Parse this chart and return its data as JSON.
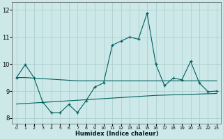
{
  "xlabel": "Humidex (Indice chaleur)",
  "x": [
    0,
    1,
    2,
    3,
    4,
    5,
    6,
    7,
    8,
    9,
    10,
    11,
    12,
    13,
    14,
    15,
    16,
    17,
    18,
    19,
    20,
    21,
    22,
    23
  ],
  "line_main": [
    9.5,
    9.98,
    9.5,
    8.6,
    8.2,
    8.2,
    8.5,
    8.2,
    8.65,
    9.15,
    9.3,
    10.7,
    10.85,
    11.0,
    10.92,
    11.88,
    10.0,
    9.2,
    9.48,
    9.42,
    10.1,
    9.3,
    8.98,
    9.0
  ],
  "line_upper": [
    9.5,
    9.5,
    9.48,
    9.46,
    9.44,
    9.42,
    9.4,
    9.38,
    9.38,
    9.38,
    9.38,
    9.38,
    9.38,
    9.38,
    9.38,
    9.38,
    9.38,
    9.38,
    9.38,
    9.38,
    9.38,
    9.38,
    9.38,
    9.38
  ],
  "line_lower": [
    8.52,
    8.54,
    8.56,
    8.58,
    8.6,
    8.62,
    8.64,
    8.66,
    8.68,
    8.7,
    8.72,
    8.74,
    8.76,
    8.78,
    8.8,
    8.82,
    8.84,
    8.85,
    8.86,
    8.87,
    8.88,
    8.89,
    8.9,
    8.91
  ],
  "ylim": [
    7.8,
    12.3
  ],
  "yticks": [
    8,
    9,
    10,
    11,
    12
  ],
  "xlim": [
    -0.5,
    23.5
  ],
  "line_color": "#005f5f",
  "bg_color": "#cce8e8",
  "grid_color": "#aed0d0"
}
